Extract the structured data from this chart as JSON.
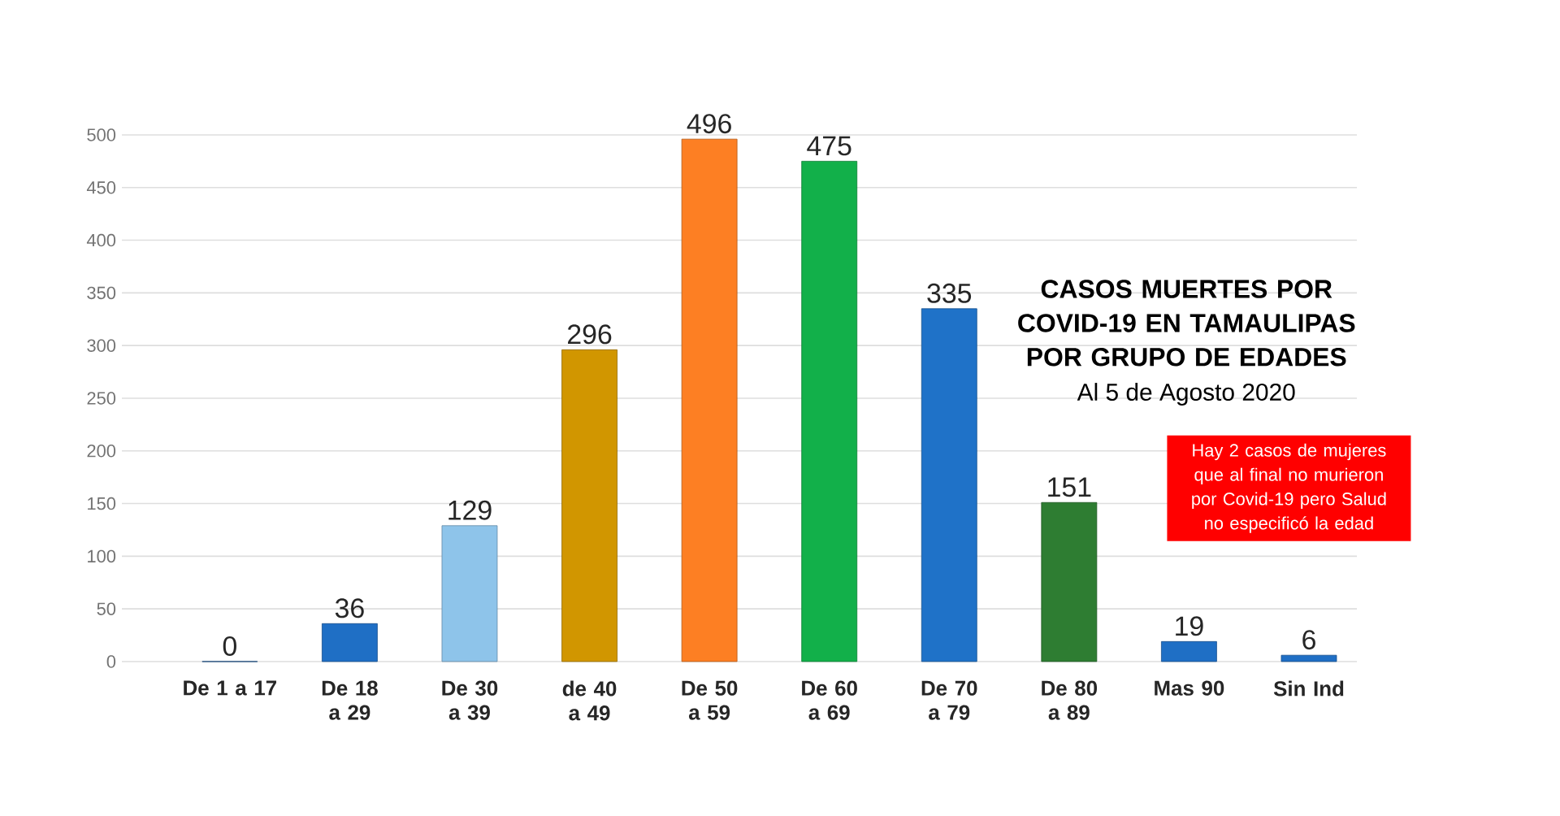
{
  "chart_data": {
    "type": "bar",
    "title": "CASOS MUERTES POR COVID-19 EN TAMAULIPAS POR GRUPO DE EDADES",
    "subtitle": "Al 5 de Agosto 2020",
    "annotations": [
      "Hay 2 casos de mujeres que al final no murieron por Covid-19 pero Salud no especificó la edad"
    ],
    "categories": [
      "De 1 a 17",
      "De 18 a 29",
      "De 30 a 39",
      "de 40 a 49",
      "De 50 a 59",
      "De 60 a 69",
      "De 70 a 79",
      "De 80 a 89",
      "Mas 90",
      "Sin Ind"
    ],
    "values": [
      0,
      36,
      129,
      296,
      496,
      475,
      335,
      151,
      19,
      6
    ],
    "colors": [
      "#1a5fa8",
      "#1f6fc5",
      "#8ec4ea",
      "#d19600",
      "#fd7f23",
      "#12b04a",
      "#1f72c8",
      "#2e7d32",
      "#1f6fc5",
      "#1f6fc5"
    ],
    "ylim": [
      0,
      500
    ],
    "yticks": [
      0,
      50,
      100,
      150,
      200,
      250,
      300,
      350,
      400,
      450,
      500
    ],
    "grid": "y",
    "data_labels": true
  }
}
